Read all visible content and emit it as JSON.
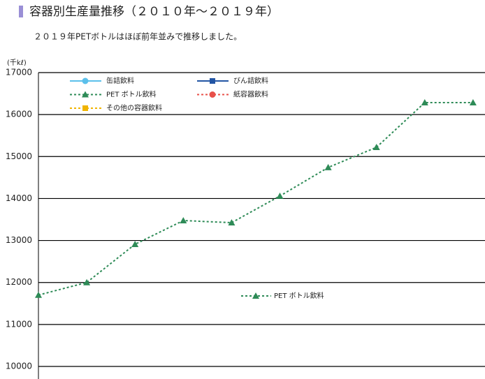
{
  "chart_data": {
    "type": "line",
    "title": "容器別生産量推移（２０１０年～２０１９年）",
    "subtitle": "２０１９年PETボトルはほぼ前年並みで推移しました。",
    "y_axis_label": "(千kℓ)",
    "categories": [
      null,
      null,
      null,
      null,
      null,
      null,
      null,
      null,
      null,
      null
    ],
    "series": [
      {
        "name": "缶詰飲料",
        "color": "#5bc0eb",
        "marker": "circle",
        "dash": "solid",
        "values": [
          null,
          null,
          null,
          null,
          null,
          null,
          null,
          null,
          null,
          null
        ]
      },
      {
        "name": "びん詰飲料",
        "color": "#2255a4",
        "marker": "square",
        "dash": "solid",
        "values": [
          null,
          null,
          null,
          null,
          null,
          null,
          null,
          null,
          null,
          null
        ]
      },
      {
        "name": "PET ボトル飲料",
        "color": "#2e8b57",
        "marker": "triangle",
        "dash": "dotted",
        "values": [
          11700,
          12000,
          12910,
          13475,
          13425,
          14060,
          14740,
          15220,
          16285,
          16285
        ]
      },
      {
        "name": "紙容器飲料",
        "color": "#e8504a",
        "marker": "circle",
        "dash": "dotted",
        "values": [
          null,
          null,
          null,
          null,
          null,
          null,
          null,
          null,
          null,
          null
        ]
      },
      {
        "name": "その他の容器飲料",
        "color": "#f0b400",
        "marker": "square",
        "dash": "dotted",
        "values": [
          null,
          null,
          null,
          null,
          null,
          null,
          null,
          null,
          null,
          null
        ]
      }
    ],
    "annotations": [
      {
        "text": "PET ボトル飲料",
        "series": 2
      }
    ],
    "ylim": [
      10000,
      17000
    ],
    "yticks": [
      10000,
      11000,
      12000,
      13000,
      14000,
      15000,
      16000,
      17000
    ],
    "grid": true
  }
}
